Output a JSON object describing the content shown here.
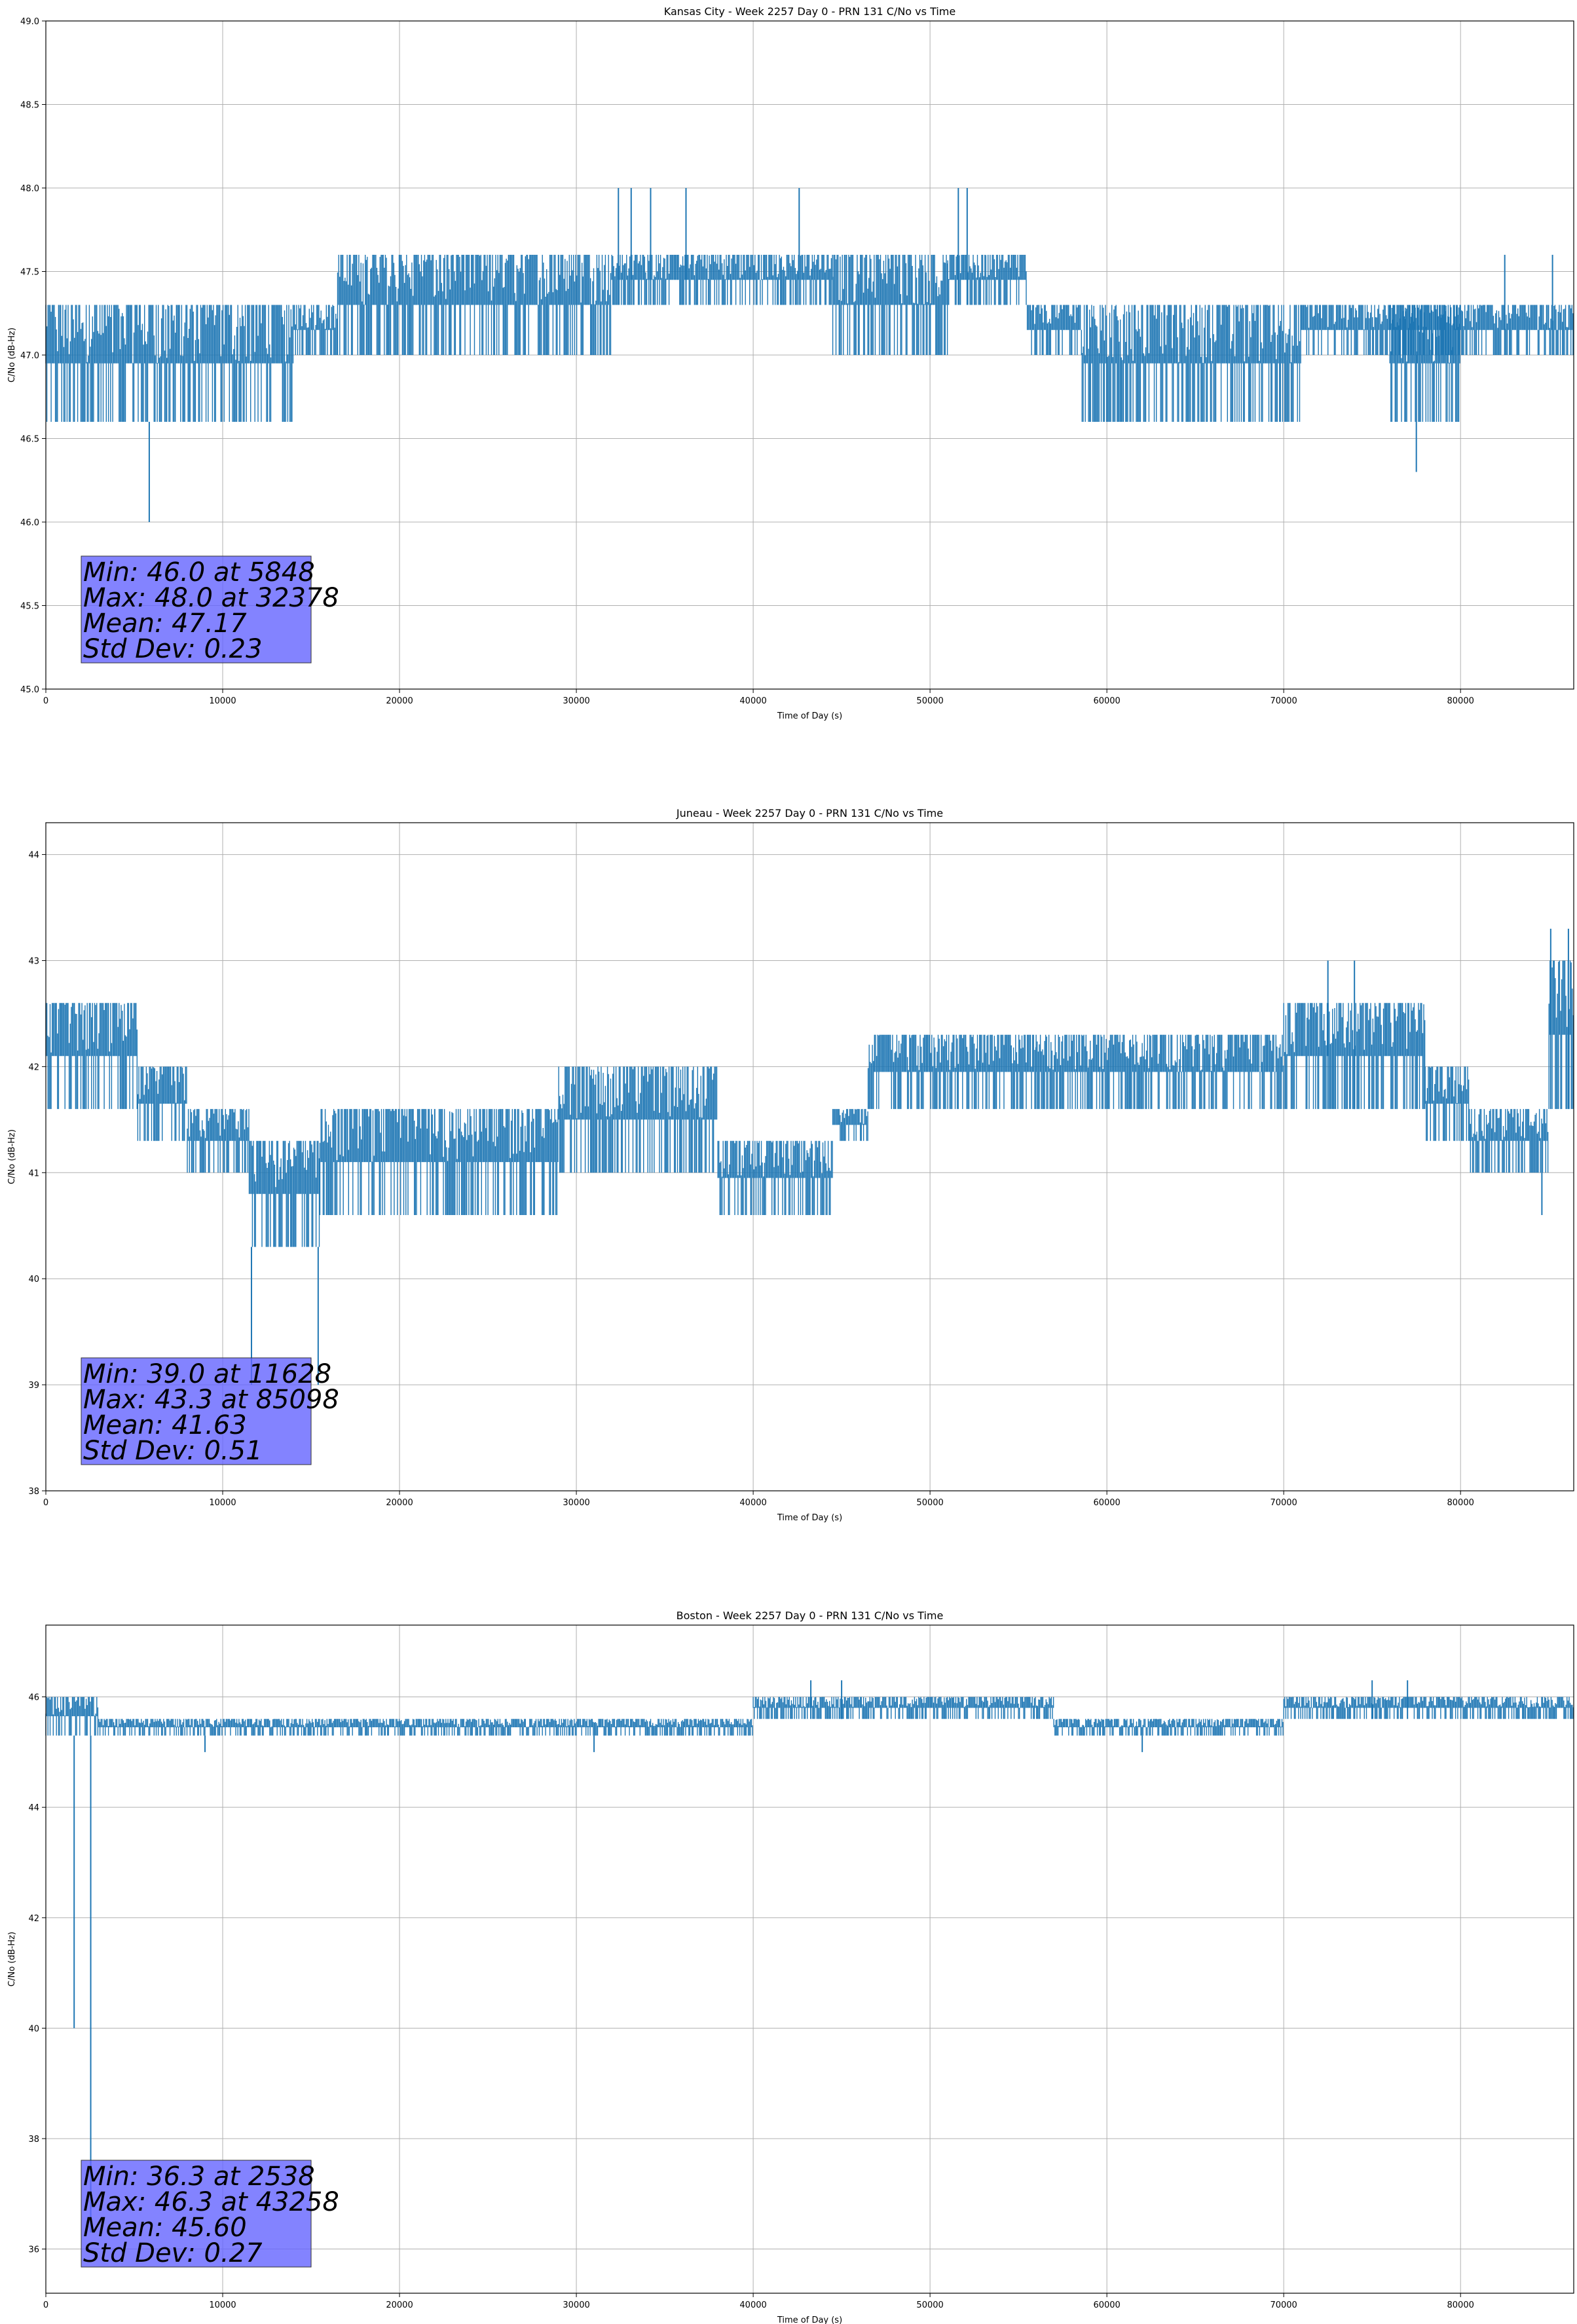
{
  "chart_data": [
    {
      "type": "line",
      "title": "Kansas City - Week 2257 Day 0 - PRN 131 C/No vs Time",
      "xlabel": "Time of Day (s)",
      "ylabel": "C/No (dB-Hz)",
      "xlim": [
        0,
        86400
      ],
      "ylim": [
        45.0,
        49.0
      ],
      "x_ticks": [
        0,
        10000,
        20000,
        30000,
        40000,
        50000,
        60000,
        70000,
        80000
      ],
      "y_ticks": [
        "45.0",
        "45.5",
        "46.0",
        "46.5",
        "47.0",
        "47.5",
        "48.0",
        "48.5",
        "49.0"
      ],
      "grid": true,
      "color": "#1f77b4",
      "segments": [
        {
          "x0": 0,
          "x1": 14000,
          "low": 46.6,
          "high": 47.3
        },
        {
          "x0": 14000,
          "x1": 16500,
          "low": 47.0,
          "high": 47.3
        },
        {
          "x0": 16500,
          "x1": 29000,
          "low": 47.0,
          "high": 47.6
        },
        {
          "x0": 29000,
          "x1": 32000,
          "low": 47.0,
          "high": 47.6
        },
        {
          "x0": 32000,
          "x1": 44500,
          "low": 47.3,
          "high": 47.6
        },
        {
          "x0": 44500,
          "x1": 51000,
          "low": 47.0,
          "high": 47.6
        },
        {
          "x0": 51000,
          "x1": 55500,
          "low": 47.3,
          "high": 47.6
        },
        {
          "x0": 55500,
          "x1": 58600,
          "low": 47.0,
          "high": 47.3
        },
        {
          "x0": 58600,
          "x1": 71000,
          "low": 46.6,
          "high": 47.3
        },
        {
          "x0": 71000,
          "x1": 86400,
          "low": 47.0,
          "high": 47.3
        },
        {
          "x0": 76000,
          "x1": 80000,
          "low": 46.6,
          "high": 47.3
        }
      ],
      "spikes": [
        {
          "x": 5848,
          "y": 46.0
        },
        {
          "x": 32378,
          "y": 48.0
        },
        {
          "x": 33100,
          "y": 48.0
        },
        {
          "x": 34200,
          "y": 48.0
        },
        {
          "x": 36200,
          "y": 48.0
        },
        {
          "x": 42600,
          "y": 48.0
        },
        {
          "x": 51600,
          "y": 48.0
        },
        {
          "x": 52100,
          "y": 48.0
        },
        {
          "x": 77500,
          "y": 46.3
        },
        {
          "x": 82500,
          "y": 47.6
        },
        {
          "x": 85200,
          "y": 47.6
        }
      ],
      "stats": [
        "Min: 46.0 at 5848",
        "Max: 48.0 at 32378",
        "Mean: 47.17",
        "Std Dev: 0.23"
      ]
    },
    {
      "type": "line",
      "title": "Juneau - Week 2257 Day 0 - PRN 131 C/No vs Time",
      "xlabel": "Time of Day (s)",
      "ylabel": "C/No (dB-Hz)",
      "xlim": [
        0,
        86400
      ],
      "ylim": [
        38.0,
        44.3
      ],
      "x_ticks": [
        0,
        10000,
        20000,
        30000,
        40000,
        50000,
        60000,
        70000,
        80000
      ],
      "y_ticks": [
        "38",
        "39",
        "40",
        "41",
        "42",
        "43",
        "44"
      ],
      "grid": true,
      "color": "#1f77b4",
      "segments": [
        {
          "x0": 0,
          "x1": 5200,
          "low": 41.6,
          "high": 42.6
        },
        {
          "x0": 5200,
          "x1": 8000,
          "low": 41.3,
          "high": 42.0
        },
        {
          "x0": 8000,
          "x1": 11500,
          "low": 41.0,
          "high": 41.6
        },
        {
          "x0": 11500,
          "x1": 15500,
          "low": 40.3,
          "high": 41.3
        },
        {
          "x0": 15500,
          "x1": 22000,
          "low": 40.6,
          "high": 41.6
        },
        {
          "x0": 22000,
          "x1": 29000,
          "low": 40.6,
          "high": 41.6
        },
        {
          "x0": 29000,
          "x1": 38000,
          "low": 41.0,
          "high": 42.0
        },
        {
          "x0": 38000,
          "x1": 44500,
          "low": 40.6,
          "high": 41.3
        },
        {
          "x0": 44500,
          "x1": 46500,
          "low": 41.3,
          "high": 41.6
        },
        {
          "x0": 46500,
          "x1": 56000,
          "low": 41.6,
          "high": 42.3
        },
        {
          "x0": 56000,
          "x1": 70000,
          "low": 41.6,
          "high": 42.3
        },
        {
          "x0": 70000,
          "x1": 78000,
          "low": 41.6,
          "high": 42.6
        },
        {
          "x0": 78000,
          "x1": 80500,
          "low": 41.3,
          "high": 42.0
        },
        {
          "x0": 80500,
          "x1": 85000,
          "low": 41.0,
          "high": 41.6
        },
        {
          "x0": 85000,
          "x1": 86400,
          "low": 41.6,
          "high": 43.0
        }
      ],
      "spikes": [
        {
          "x": 11628,
          "y": 39.0
        },
        {
          "x": 15400,
          "y": 39.0
        },
        {
          "x": 85098,
          "y": 43.3
        },
        {
          "x": 86100,
          "y": 43.3
        },
        {
          "x": 84600,
          "y": 40.6
        },
        {
          "x": 72500,
          "y": 43.0
        },
        {
          "x": 74000,
          "y": 43.0
        }
      ],
      "stats": [
        "Min: 39.0 at 11628",
        "Max: 43.3 at 85098",
        "Mean: 41.63",
        "Std Dev: 0.51"
      ]
    },
    {
      "type": "line",
      "title": "Boston - Week 2257 Day 0 - PRN 131 C/No vs Time",
      "xlabel": "Time of Day (s)",
      "ylabel": "C/No (dB-Hz)",
      "xlim": [
        0,
        86400
      ],
      "ylim": [
        35.2,
        47.3
      ],
      "x_ticks": [
        0,
        10000,
        20000,
        30000,
        40000,
        50000,
        60000,
        70000,
        80000
      ],
      "y_ticks": [
        "36",
        "38",
        "40",
        "42",
        "44",
        "46"
      ],
      "grid": true,
      "color": "#1f77b4",
      "segments": [
        {
          "x0": 0,
          "x1": 3000,
          "low": 45.3,
          "high": 46.0
        },
        {
          "x0": 3000,
          "x1": 40000,
          "low": 45.3,
          "high": 45.6
        },
        {
          "x0": 40000,
          "x1": 57000,
          "low": 45.6,
          "high": 46.0
        },
        {
          "x0": 57000,
          "x1": 70000,
          "low": 45.3,
          "high": 45.6
        },
        {
          "x0": 70000,
          "x1": 86400,
          "low": 45.6,
          "high": 46.0
        }
      ],
      "spikes": [
        {
          "x": 1600,
          "y": 40.0
        },
        {
          "x": 2538,
          "y": 36.3
        },
        {
          "x": 43258,
          "y": 46.3
        },
        {
          "x": 45000,
          "y": 46.3
        },
        {
          "x": 75000,
          "y": 46.3
        },
        {
          "x": 77000,
          "y": 46.3
        },
        {
          "x": 9000,
          "y": 45.0
        },
        {
          "x": 31000,
          "y": 45.0
        },
        {
          "x": 62000,
          "y": 45.0
        }
      ],
      "stats": [
        "Min: 36.3 at 2538",
        "Max: 46.3 at 43258",
        "Mean: 45.60",
        "Std Dev: 0.27"
      ]
    }
  ]
}
